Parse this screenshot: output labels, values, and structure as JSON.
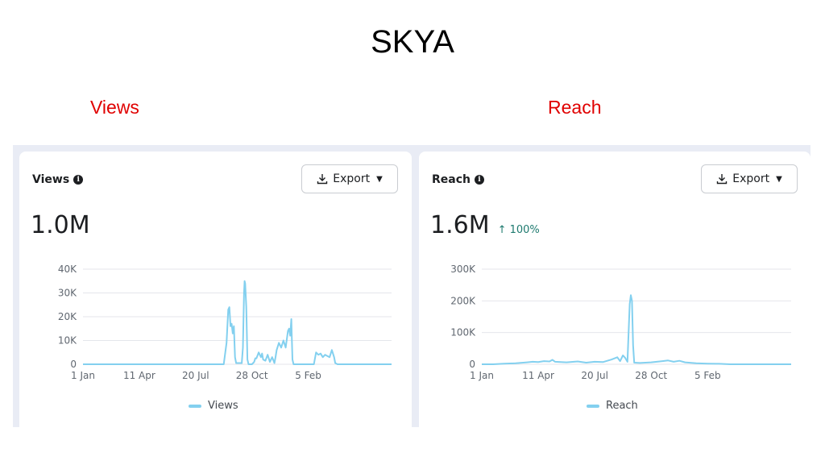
{
  "header": {
    "title": "SKYA",
    "views_label": "Views",
    "reach_label": "Reach"
  },
  "colors": {
    "line": "#83d0ef",
    "label_red": "#e00000",
    "delta_green": "#1e7a6f",
    "grid": "#e4e6eb",
    "axis_text": "#606770"
  },
  "views_card": {
    "title": "Views",
    "info_icon": "info-circle-icon",
    "export_label": "Export",
    "export_icon": "download-icon",
    "caret_icon": "caret-down-icon",
    "total": "1.0M",
    "legend": "Views"
  },
  "reach_card": {
    "title": "Reach",
    "info_icon": "info-circle-icon",
    "export_label": "Export",
    "export_icon": "download-icon",
    "caret_icon": "caret-down-icon",
    "total": "1.6M",
    "delta": "↑ 100%",
    "legend": "Reach"
  },
  "chart_data": [
    {
      "type": "line",
      "title": "Views",
      "y_tick_labels": [
        "0",
        "10K",
        "20K",
        "30K",
        "40K"
      ],
      "ylim": [
        0,
        40000
      ],
      "x_tick_labels": [
        "1 Jan",
        "11 Apr",
        "20 Jul",
        "28 Oct",
        "5 Feb"
      ],
      "x_tick_days": [
        0,
        100,
        200,
        300,
        400
      ],
      "xlim": [
        0,
        548
      ],
      "grid": true,
      "legend": "bottom",
      "series": [
        {
          "name": "Views",
          "points": [
            [
              0,
              0
            ],
            [
              250,
              0
            ],
            [
              255,
              9000
            ],
            [
              258,
              23000
            ],
            [
              260,
              24000
            ],
            [
              262,
              16000
            ],
            [
              264,
              17000
            ],
            [
              266,
              13000
            ],
            [
              268,
              16000
            ],
            [
              270,
              3000
            ],
            [
              272,
              500
            ],
            [
              282,
              500
            ],
            [
              284,
              7000
            ],
            [
              286,
              30000
            ],
            [
              287,
              35000
            ],
            [
              288,
              34000
            ],
            [
              290,
              24000
            ],
            [
              292,
              2000
            ],
            [
              294,
              0
            ],
            [
              300,
              0
            ],
            [
              304,
              1000
            ],
            [
              306,
              2500
            ],
            [
              308,
              2500
            ],
            [
              312,
              5000
            ],
            [
              316,
              3000
            ],
            [
              318,
              4500
            ],
            [
              320,
              2000
            ],
            [
              324,
              1500
            ],
            [
              328,
              4000
            ],
            [
              332,
              1000
            ],
            [
              336,
              3000
            ],
            [
              340,
              500
            ],
            [
              342,
              3000
            ],
            [
              344,
              6000
            ],
            [
              348,
              9000
            ],
            [
              352,
              7000
            ],
            [
              356,
              10000
            ],
            [
              360,
              7000
            ],
            [
              364,
              14000
            ],
            [
              366,
              15000
            ],
            [
              368,
              12000
            ],
            [
              370,
              19000
            ],
            [
              371,
              10000
            ],
            [
              372,
              2000
            ],
            [
              374,
              0
            ],
            [
              410,
              0
            ],
            [
              414,
              5000
            ],
            [
              418,
              4000
            ],
            [
              422,
              4500
            ],
            [
              426,
              3000
            ],
            [
              430,
              4000
            ],
            [
              434,
              3500
            ],
            [
              438,
              3000
            ],
            [
              442,
              6000
            ],
            [
              446,
              3000
            ],
            [
              448,
              500
            ],
            [
              452,
              0
            ],
            [
              548,
              0
            ]
          ]
        }
      ]
    },
    {
      "type": "line",
      "title": "Reach",
      "y_tick_labels": [
        "0",
        "100K",
        "200K",
        "300K"
      ],
      "ylim": [
        0,
        300000
      ],
      "x_tick_labels": [
        "1 Jan",
        "11 Apr",
        "20 Jul",
        "28 Oct",
        "5 Feb"
      ],
      "x_tick_days": [
        0,
        100,
        200,
        300,
        400
      ],
      "xlim": [
        0,
        548
      ],
      "grid": true,
      "legend": "bottom",
      "series": [
        {
          "name": "Reach",
          "points": [
            [
              0,
              0
            ],
            [
              20,
              0
            ],
            [
              40,
              2000
            ],
            [
              60,
              3000
            ],
            [
              80,
              6000
            ],
            [
              90,
              8000
            ],
            [
              100,
              7000
            ],
            [
              110,
              10000
            ],
            [
              120,
              9000
            ],
            [
              125,
              14000
            ],
            [
              130,
              8000
            ],
            [
              150,
              6000
            ],
            [
              170,
              9000
            ],
            [
              185,
              5000
            ],
            [
              200,
              8000
            ],
            [
              215,
              7000
            ],
            [
              230,
              15000
            ],
            [
              240,
              22000
            ],
            [
              245,
              10000
            ],
            [
              250,
              28000
            ],
            [
              254,
              20000
            ],
            [
              258,
              8000
            ],
            [
              262,
              190000
            ],
            [
              264,
              218000
            ],
            [
              266,
              200000
            ],
            [
              268,
              60000
            ],
            [
              270,
              5000
            ],
            [
              280,
              4000
            ],
            [
              300,
              6000
            ],
            [
              320,
              10000
            ],
            [
              330,
              12000
            ],
            [
              340,
              8000
            ],
            [
              350,
              11000
            ],
            [
              360,
              6000
            ],
            [
              380,
              3000
            ],
            [
              400,
              2000
            ],
            [
              420,
              1500
            ],
            [
              440,
              0
            ],
            [
              460,
              0
            ],
            [
              548,
              0
            ]
          ]
        }
      ]
    }
  ]
}
